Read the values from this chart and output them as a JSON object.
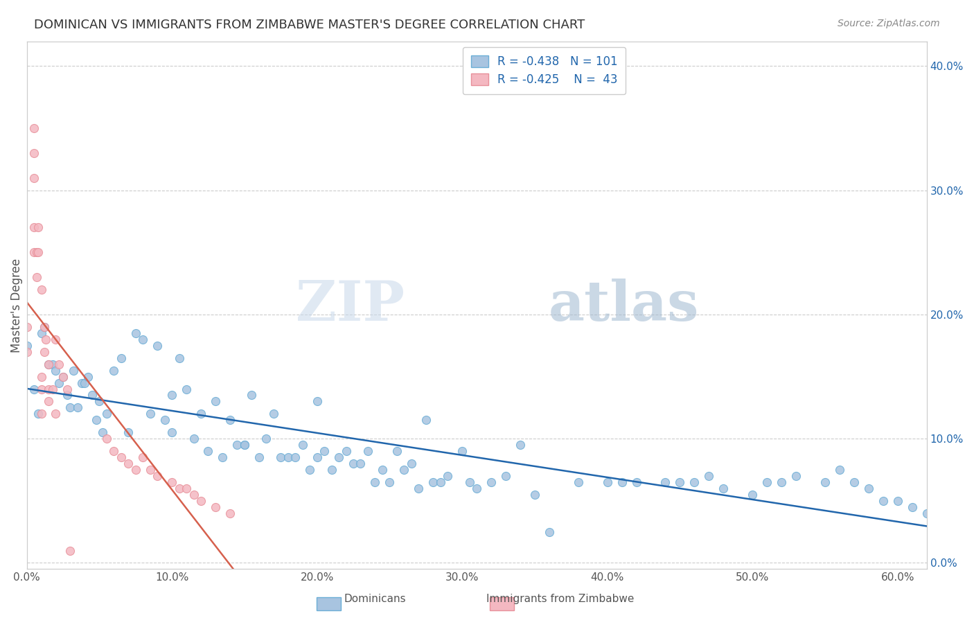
{
  "title": "DOMINICAN VS IMMIGRANTS FROM ZIMBABWE MASTER'S DEGREE CORRELATION CHART",
  "source": "Source: ZipAtlas.com",
  "ylabel": "Master's Degree",
  "watermark_zip": "ZIP",
  "watermark_atlas": "atlas",
  "legend_blue_label": "Dominicans",
  "legend_pink_label": "Immigrants from Zimbabwe",
  "R_blue": -0.438,
  "N_blue": 101,
  "R_pink": -0.425,
  "N_pink": 43,
  "xlim": [
    0.0,
    0.62
  ],
  "ylim": [
    -0.005,
    0.42
  ],
  "xticks": [
    0.0,
    0.1,
    0.2,
    0.3,
    0.4,
    0.5,
    0.6
  ],
  "xtick_labels": [
    "0.0%",
    "10.0%",
    "20.0%",
    "30.0%",
    "40.0%",
    "50.0%",
    "60.0%"
  ],
  "yticks_right": [
    0.0,
    0.1,
    0.2,
    0.3,
    0.4
  ],
  "ytick_labels_right": [
    "0.0%",
    "10.0%",
    "20.0%",
    "30.0%",
    "40.0%"
  ],
  "blue_color": "#a8c4e0",
  "blue_edge_color": "#6baed6",
  "pink_color": "#f4b8c1",
  "pink_edge_color": "#e8909a",
  "trend_blue_color": "#2166ac",
  "trend_pink_color": "#d6604d",
  "background_color": "#ffffff",
  "grid_color": "#cccccc",
  "title_color": "#333333",
  "axis_label_color": "#555555",
  "legend_text_color": "#2166ac",
  "blue_scatter_x": [
    0.0,
    0.005,
    0.008,
    0.01,
    0.012,
    0.015,
    0.018,
    0.02,
    0.022,
    0.025,
    0.028,
    0.03,
    0.032,
    0.035,
    0.038,
    0.04,
    0.042,
    0.045,
    0.048,
    0.05,
    0.052,
    0.055,
    0.06,
    0.065,
    0.07,
    0.075,
    0.08,
    0.085,
    0.09,
    0.095,
    0.1,
    0.1,
    0.105,
    0.11,
    0.115,
    0.12,
    0.125,
    0.13,
    0.135,
    0.14,
    0.145,
    0.15,
    0.155,
    0.16,
    0.165,
    0.17,
    0.175,
    0.18,
    0.185,
    0.19,
    0.195,
    0.2,
    0.2,
    0.205,
    0.21,
    0.215,
    0.22,
    0.225,
    0.23,
    0.235,
    0.24,
    0.245,
    0.25,
    0.255,
    0.26,
    0.265,
    0.27,
    0.275,
    0.28,
    0.285,
    0.29,
    0.3,
    0.305,
    0.31,
    0.32,
    0.33,
    0.34,
    0.35,
    0.36,
    0.38,
    0.4,
    0.41,
    0.42,
    0.44,
    0.45,
    0.46,
    0.47,
    0.48,
    0.5,
    0.51,
    0.52,
    0.53,
    0.55,
    0.56,
    0.57,
    0.58,
    0.59,
    0.6,
    0.61,
    0.62,
    0.15
  ],
  "blue_scatter_y": [
    0.175,
    0.14,
    0.12,
    0.185,
    0.19,
    0.16,
    0.16,
    0.155,
    0.145,
    0.15,
    0.135,
    0.125,
    0.155,
    0.125,
    0.145,
    0.145,
    0.15,
    0.135,
    0.115,
    0.13,
    0.105,
    0.12,
    0.155,
    0.165,
    0.105,
    0.185,
    0.18,
    0.12,
    0.175,
    0.115,
    0.105,
    0.135,
    0.165,
    0.14,
    0.1,
    0.12,
    0.09,
    0.13,
    0.085,
    0.115,
    0.095,
    0.095,
    0.135,
    0.085,
    0.1,
    0.12,
    0.085,
    0.085,
    0.085,
    0.095,
    0.075,
    0.085,
    0.13,
    0.09,
    0.075,
    0.085,
    0.09,
    0.08,
    0.08,
    0.09,
    0.065,
    0.075,
    0.065,
    0.09,
    0.075,
    0.08,
    0.06,
    0.115,
    0.065,
    0.065,
    0.07,
    0.09,
    0.065,
    0.06,
    0.065,
    0.07,
    0.095,
    0.055,
    0.025,
    0.065,
    0.065,
    0.065,
    0.065,
    0.065,
    0.065,
    0.065,
    0.07,
    0.06,
    0.055,
    0.065,
    0.065,
    0.07,
    0.065,
    0.075,
    0.065,
    0.06,
    0.05,
    0.05,
    0.045,
    0.04,
    0.095
  ],
  "pink_scatter_x": [
    0.0,
    0.0,
    0.005,
    0.005,
    0.005,
    0.005,
    0.005,
    0.007,
    0.007,
    0.008,
    0.008,
    0.01,
    0.01,
    0.01,
    0.01,
    0.012,
    0.012,
    0.013,
    0.015,
    0.015,
    0.015,
    0.018,
    0.02,
    0.02,
    0.022,
    0.025,
    0.028,
    0.03,
    0.055,
    0.06,
    0.065,
    0.07,
    0.075,
    0.08,
    0.085,
    0.09,
    0.1,
    0.105,
    0.11,
    0.115,
    0.12,
    0.13,
    0.14
  ],
  "pink_scatter_y": [
    0.19,
    0.17,
    0.35,
    0.33,
    0.31,
    0.27,
    0.25,
    0.25,
    0.23,
    0.27,
    0.25,
    0.22,
    0.15,
    0.14,
    0.12,
    0.19,
    0.17,
    0.18,
    0.16,
    0.14,
    0.13,
    0.14,
    0.18,
    0.12,
    0.16,
    0.15,
    0.14,
    0.01,
    0.1,
    0.09,
    0.085,
    0.08,
    0.075,
    0.085,
    0.075,
    0.07,
    0.065,
    0.06,
    0.06,
    0.055,
    0.05,
    0.045,
    0.04
  ]
}
